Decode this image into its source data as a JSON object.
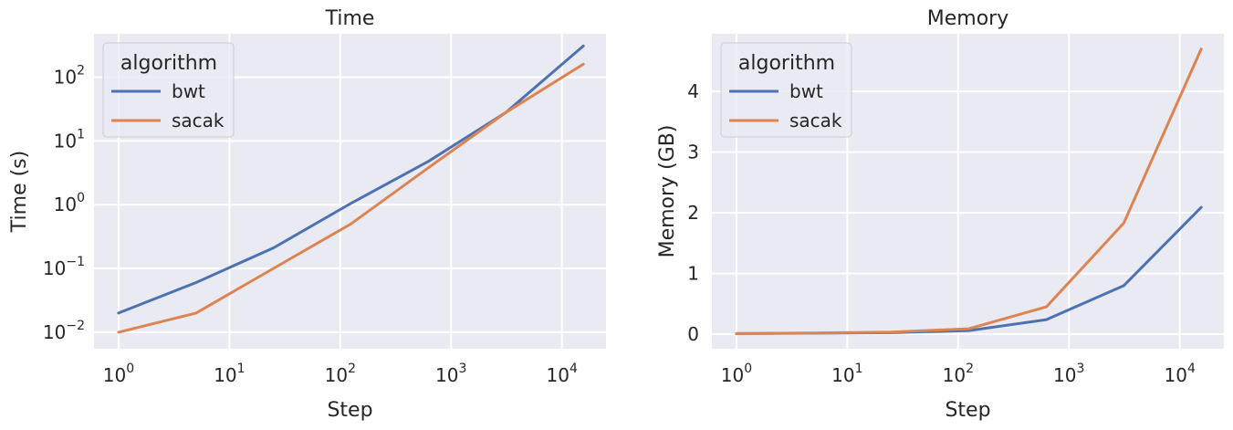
{
  "chart_data": [
    {
      "type": "line",
      "title": "Time",
      "xlabel": "Step",
      "ylabel": "Time (s)",
      "xscale": "log",
      "yscale": "log",
      "xlim": [
        0.6,
        25000
      ],
      "ylim": [
        0.0055,
        480
      ],
      "xticks": [
        {
          "base": "10",
          "exp": "0",
          "value": 1
        },
        {
          "base": "10",
          "exp": "1",
          "value": 10
        },
        {
          "base": "10",
          "exp": "2",
          "value": 100
        },
        {
          "base": "10",
          "exp": "3",
          "value": 1000
        },
        {
          "base": "10",
          "exp": "4",
          "value": 10000
        }
      ],
      "yticks": [
        {
          "base": "10",
          "exp": "−2",
          "value": 0.01
        },
        {
          "base": "10",
          "exp": "−1",
          "value": 0.1
        },
        {
          "base": "10",
          "exp": "0",
          "value": 1
        },
        {
          "base": "10",
          "exp": "1",
          "value": 10
        },
        {
          "base": "10",
          "exp": "2",
          "value": 100
        }
      ],
      "grid": true,
      "legend": {
        "title": "algorithm",
        "position": "top-left"
      },
      "series": [
        {
          "name": "bwt",
          "color": "#4c72b0",
          "x": [
            1,
            5,
            25,
            125,
            625,
            3125,
            15625
          ],
          "y": [
            0.02,
            0.06,
            0.21,
            1.05,
            4.8,
            28,
            310
          ]
        },
        {
          "name": "sacak",
          "color": "#dd8452",
          "x": [
            1,
            5,
            25,
            125,
            625,
            3125,
            15625
          ],
          "y": [
            0.01,
            0.02,
            0.1,
            0.5,
            3.8,
            28,
            160
          ]
        }
      ]
    },
    {
      "type": "line",
      "title": "Memory",
      "xlabel": "Step",
      "ylabel": "Memory (GB)",
      "xscale": "log",
      "yscale": "linear",
      "xlim": [
        0.6,
        25000
      ],
      "ylim": [
        -0.24,
        4.95
      ],
      "xticks": [
        {
          "base": "10",
          "exp": "0",
          "value": 1
        },
        {
          "base": "10",
          "exp": "1",
          "value": 10
        },
        {
          "base": "10",
          "exp": "2",
          "value": 100
        },
        {
          "base": "10",
          "exp": "3",
          "value": 1000
        },
        {
          "base": "10",
          "exp": "4",
          "value": 10000
        }
      ],
      "yticks": [
        {
          "label": "0",
          "value": 0
        },
        {
          "label": "1",
          "value": 1
        },
        {
          "label": "2",
          "value": 2
        },
        {
          "label": "3",
          "value": 3
        },
        {
          "label": "4",
          "value": 4
        }
      ],
      "grid": true,
      "legend": {
        "title": "algorithm",
        "position": "top-left"
      },
      "series": [
        {
          "name": "bwt",
          "color": "#4c72b0",
          "x": [
            1,
            5,
            25,
            125,
            625,
            3125,
            15625
          ],
          "y": [
            0.01,
            0.015,
            0.025,
            0.06,
            0.24,
            0.8,
            2.09
          ]
        },
        {
          "name": "sacak",
          "color": "#dd8452",
          "x": [
            1,
            5,
            25,
            125,
            625,
            3125,
            15625
          ],
          "y": [
            0.01,
            0.02,
            0.035,
            0.09,
            0.45,
            1.83,
            4.7
          ]
        }
      ]
    }
  ]
}
